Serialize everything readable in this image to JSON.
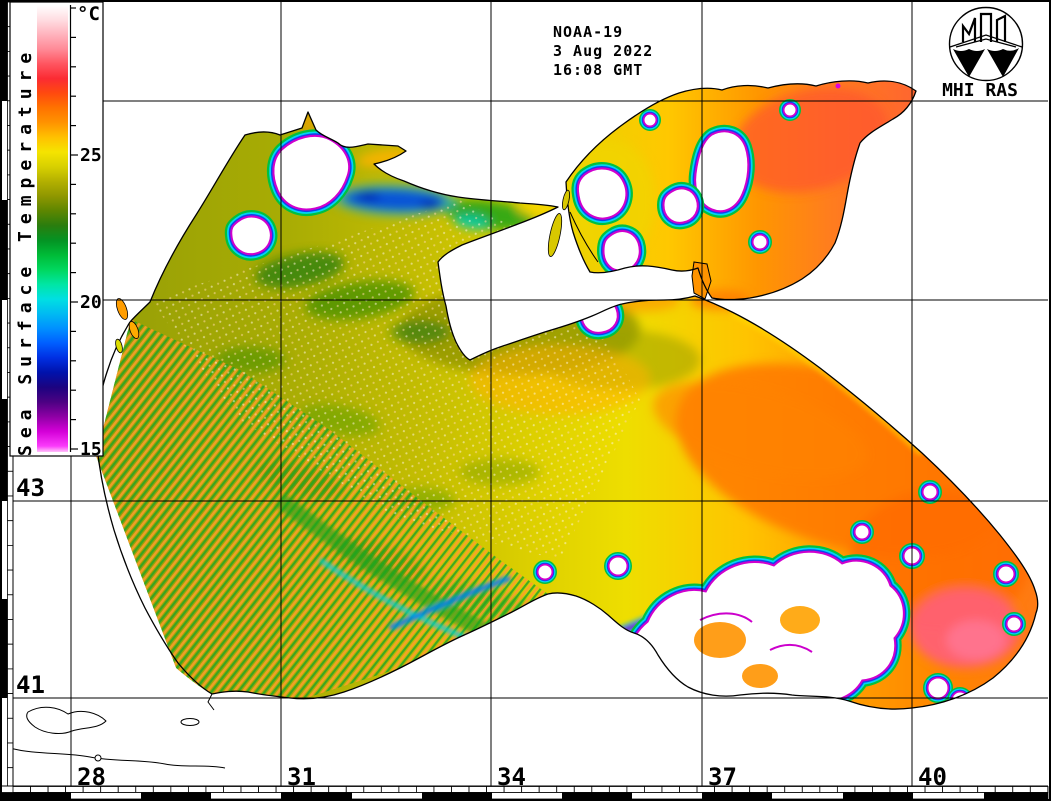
{
  "annotation": {
    "satellite": "NOAA-19",
    "date": "3 Aug 2022",
    "time": "16:08 GMT"
  },
  "logo": {
    "label": "MHI RAS"
  },
  "legend": {
    "title": "Sea Surface Temperature",
    "unit": "°C",
    "temp_min": 15,
    "temp_max": 30,
    "major_ticks": [
      {
        "label": "25",
        "temp": 25
      },
      {
        "label": "20",
        "temp": 20
      },
      {
        "label": "15",
        "temp": 15
      }
    ],
    "minor_tick_step_degC": 1,
    "stops": [
      [
        30.1,
        "#ffffff"
      ],
      [
        29.6,
        "#ffdde2"
      ],
      [
        29.1,
        "#ffb3bd"
      ],
      [
        28.6,
        "#ff8a97"
      ],
      [
        28.1,
        "#ff5560"
      ],
      [
        27.6,
        "#fb2b33"
      ],
      [
        27.1,
        "#ff4a0e"
      ],
      [
        26.6,
        "#ff7300"
      ],
      [
        26.1,
        "#ff9300"
      ],
      [
        25.6,
        "#ffc100"
      ],
      [
        25.1,
        "#f5e400"
      ],
      [
        24.6,
        "#d8d000"
      ],
      [
        24.1,
        "#b3b000"
      ],
      [
        23.6,
        "#8f9700"
      ],
      [
        23.1,
        "#5d8600"
      ],
      [
        22.6,
        "#2a7d0e"
      ],
      [
        22.1,
        "#049323"
      ],
      [
        21.6,
        "#00bb37"
      ],
      [
        21.1,
        "#00d75e"
      ],
      [
        20.6,
        "#00e6a4"
      ],
      [
        20.1,
        "#00dfe2"
      ],
      [
        19.6,
        "#00baf2"
      ],
      [
        19.1,
        "#0090ff"
      ],
      [
        18.6,
        "#005eff"
      ],
      [
        18.1,
        "#002fe2"
      ],
      [
        17.6,
        "#0012ab"
      ],
      [
        17.1,
        "#1c0380"
      ],
      [
        16.6,
        "#4c0183"
      ],
      [
        16.1,
        "#8e00a5"
      ],
      [
        15.6,
        "#d400d8"
      ],
      [
        15.1,
        "#fb3bfb"
      ],
      [
        14.9,
        "#ffc2f9"
      ]
    ]
  },
  "grid": {
    "lon_labels": [
      "28",
      "31",
      "34",
      "37",
      "40"
    ],
    "lat_labels": [
      "43",
      "41"
    ],
    "lon_values": [
      28,
      31,
      34,
      37,
      40
    ],
    "lat_values": [
      43,
      41
    ]
  },
  "colors": {
    "background": "#ffffff",
    "frame": "#000000",
    "sea_west_olive": "#a8ac04",
    "sea_center_yellow": "#eede00",
    "sea_east_orange": "#ff8400",
    "azov_west": "#e8d400",
    "azov_east": "#ff6430",
    "warm_spot_southeast": "#ff5e79",
    "cloud_fill": "#ffffff",
    "cloud_fringe": [
      "#00c040",
      "#00d4f4",
      "#1040ee",
      "#cc00cc"
    ]
  }
}
